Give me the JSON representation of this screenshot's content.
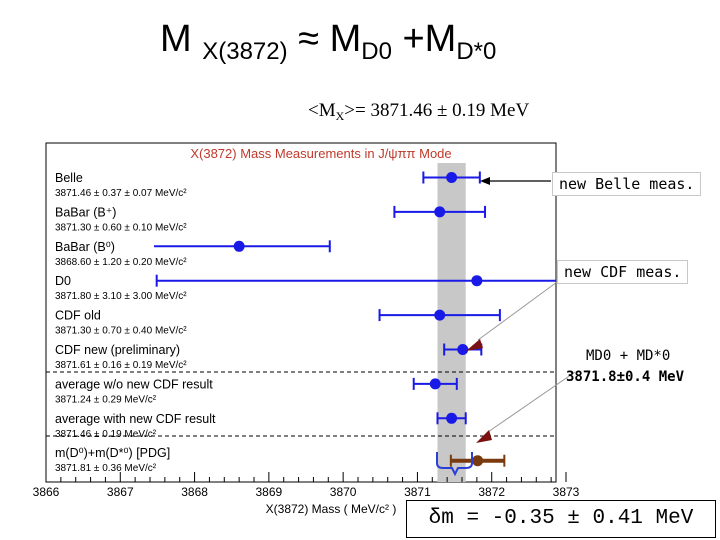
{
  "slide": {
    "title_main": "M",
    "title_sub1": "X(3872)",
    "title_approx": "≈ M",
    "title_sub2": "D0",
    "title_plus": " +M",
    "title_sub3": "D*0",
    "average_prefix": "<M",
    "average_sub": "X",
    "average_suffix": ">= 3871.46 ± 0.19 MeV",
    "note_belle": "new Belle meas.",
    "note_cdf": "new CDF meas.",
    "note_sum_label": "MD0 + MD*0",
    "note_sum_value": "3871.8±0.4 MeV",
    "delta_m": "δm = -0.35 ± 0.41 MeV"
  },
  "chart_data": {
    "type": "scatter",
    "title": "X(3872) Mass Measurements in J/ψππ Mode",
    "xlabel": "X(3872) Mass  ( MeV/c² )",
    "xlim": [
      3866,
      3873
    ],
    "x_ticks": [
      "3866",
      "3867",
      "3868",
      "3869",
      "3870",
      "3871",
      "3872",
      "3873"
    ],
    "band": {
      "center": 3871.46,
      "halfwidth": 0.19
    },
    "point_color": "#1a1ae6",
    "pdg_color": "#7a3a10",
    "entries": [
      {
        "label": "Belle",
        "value_text": "3871.46 ± 0.37 ± 0.07 MeV/c²",
        "mean": 3871.46,
        "err": 0.38
      },
      {
        "label": "BaBar (B⁺)",
        "value_text": "3871.30 ± 0.60 ± 0.10 MeV/c²",
        "mean": 3871.3,
        "err": 0.61
      },
      {
        "label": "BaBar (B⁰)",
        "value_text": "3868.60 ± 1.20 ± 0.20 MeV/c²",
        "mean": 3868.6,
        "err": 1.22
      },
      {
        "label": "D0",
        "value_text": "3871.80 ± 3.10 ± 3.00 MeV/c²",
        "mean": 3871.8,
        "err": 4.31
      },
      {
        "label": "CDF old",
        "value_text": "3871.30 ± 0.70 ± 0.40 MeV/c²",
        "mean": 3871.3,
        "err": 0.81
      },
      {
        "label": "CDF new (preliminary)",
        "value_text": "3871.61 ± 0.16 ± 0.19 MeV/c²",
        "mean": 3871.61,
        "err": 0.25
      },
      {
        "label": "average w/o new CDF result",
        "value_text": "3871.24 ± 0.29 MeV/c²",
        "mean": 3871.24,
        "err": 0.29
      },
      {
        "label": "average with new CDF result",
        "value_text": "3871.46 ± 0.19 MeV/c²",
        "mean": 3871.46,
        "err": 0.19
      },
      {
        "label": "m(D⁰)+m(D*⁰) [PDG]",
        "value_text": "3871.81 ± 0.36 MeV/c²",
        "mean": 3871.81,
        "err": 0.36
      }
    ]
  }
}
